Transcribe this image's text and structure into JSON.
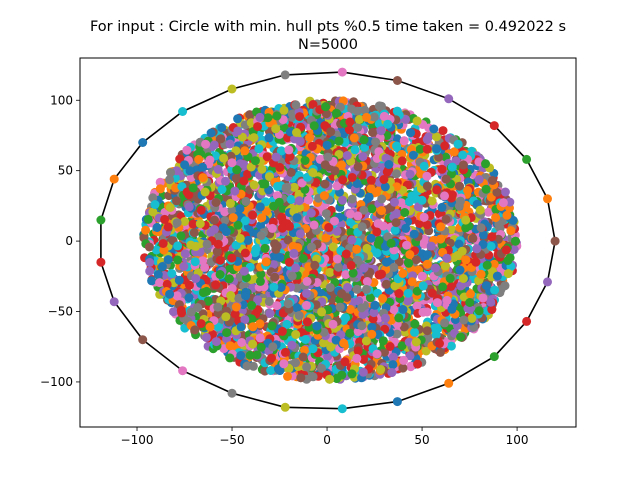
{
  "chart_data": {
    "type": "scatter",
    "title_line1": "For input : Circle with min. hull pts %0.5 time taken = 0.492022 s",
    "title_line2": "N=5000",
    "xlabel": "",
    "ylabel": "",
    "xlim": [
      -130,
      131
    ],
    "ylim": [
      -132,
      130
    ],
    "xticks": [
      -100,
      -50,
      0,
      50,
      100
    ],
    "yticks": [
      -100,
      -50,
      0,
      50,
      100
    ],
    "xtick_labels": [
      "−100",
      "−50",
      "0",
      "50",
      "100"
    ],
    "ytick_labels": [
      "−100",
      "−50",
      "0",
      "50",
      "100"
    ],
    "grid": false,
    "point_count": 5000,
    "cloud": {
      "x_range": [
        -97,
        100
      ],
      "y_range": [
        -99,
        100
      ],
      "shape": "ellipse"
    },
    "palette": [
      "#1f77b4",
      "#ff7f0e",
      "#2ca02c",
      "#d62728",
      "#9467bd",
      "#8c564b",
      "#e377c2",
      "#7f7f7f",
      "#bcbd22",
      "#17becf"
    ],
    "hull": {
      "color": "#000000",
      "points": [
        {
          "x": 120,
          "y": 0,
          "color": "#8c564b"
        },
        {
          "x": 116,
          "y": -29,
          "color": "#9467bd"
        },
        {
          "x": 105,
          "y": -57,
          "color": "#d62728"
        },
        {
          "x": 88,
          "y": -82,
          "color": "#2ca02c"
        },
        {
          "x": 64,
          "y": -101,
          "color": "#ff7f0e"
        },
        {
          "x": 37,
          "y": -114,
          "color": "#1f77b4"
        },
        {
          "x": 8,
          "y": -119,
          "color": "#17becf"
        },
        {
          "x": -22,
          "y": -118,
          "color": "#bcbd22"
        },
        {
          "x": -50,
          "y": -108,
          "color": "#7f7f7f"
        },
        {
          "x": -76,
          "y": -92,
          "color": "#e377c2"
        },
        {
          "x": -97,
          "y": -70,
          "color": "#8c564b"
        },
        {
          "x": -112,
          "y": -43,
          "color": "#9467bd"
        },
        {
          "x": -119,
          "y": -15,
          "color": "#d62728"
        },
        {
          "x": -119,
          "y": 15,
          "color": "#2ca02c"
        },
        {
          "x": -112,
          "y": 44,
          "color": "#ff7f0e"
        },
        {
          "x": -97,
          "y": 70,
          "color": "#1f77b4"
        },
        {
          "x": -76,
          "y": 92,
          "color": "#17becf"
        },
        {
          "x": -50,
          "y": 108,
          "color": "#bcbd22"
        },
        {
          "x": -22,
          "y": 118,
          "color": "#7f7f7f"
        },
        {
          "x": 8,
          "y": 120,
          "color": "#e377c2"
        },
        {
          "x": 37,
          "y": 114,
          "color": "#8c564b"
        },
        {
          "x": 64,
          "y": 101,
          "color": "#9467bd"
        },
        {
          "x": 88,
          "y": 82,
          "color": "#d62728"
        },
        {
          "x": 105,
          "y": 58,
          "color": "#2ca02c"
        },
        {
          "x": 116,
          "y": 30,
          "color": "#ff7f0e"
        }
      ]
    }
  }
}
